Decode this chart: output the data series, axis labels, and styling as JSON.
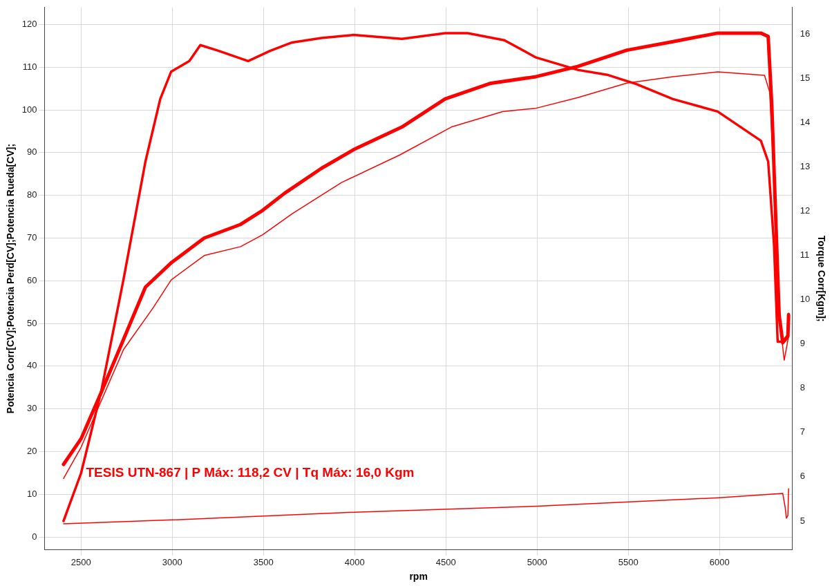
{
  "chart_data": {
    "type": "line",
    "title": "TESIS UTN-867 | P Máx: 118,2 CV | Tq Máx: 16,0 Kgm",
    "xlabel": "rpm",
    "ylabel": "Potencia Corr[CV];Potencia Perd[CV];Potencia Rueda[CV];",
    "y2label": "Torque Corr[Kgm];",
    "xlim": [
      2300,
      6400
    ],
    "xticks": [
      2500,
      3000,
      3500,
      4000,
      4500,
      5000,
      5500,
      6000
    ],
    "ylim": [
      -3,
      124
    ],
    "yticks": [
      0,
      10,
      20,
      30,
      40,
      50,
      60,
      70,
      80,
      90,
      100,
      110,
      120
    ],
    "y2lim": [
      4.35,
      16.6
    ],
    "y2ticks": [
      5,
      6,
      7,
      8,
      9,
      10,
      11,
      12,
      13,
      14,
      15,
      16
    ],
    "grid": true,
    "legend": false,
    "marker": "none",
    "line_style": "solid",
    "series": [
      {
        "color": "#ff0000",
        "x": [
          2404,
          2500,
          2612,
          2733,
          2853,
          2994,
          3175,
          3375,
          3496,
          3616,
          3817,
          3994,
          4259,
          4496,
          4741,
          4994,
          5223,
          5492,
          5745,
          5990,
          6227,
          6267,
          6287,
          6307,
          6327,
          6347,
          6375,
          6379
        ],
        "values": [
          17,
          23,
          34,
          46.3,
          58.5,
          64.2,
          70,
          73.2,
          76.5,
          80.5,
          86.3,
          90.7,
          96,
          102.6,
          106.2,
          107.8,
          110.2,
          114,
          116,
          118,
          118,
          117.2,
          101,
          76.5,
          52,
          45.5,
          47,
          52
        ]
      },
      {
        "color": "#ff0000",
        "x": [
          2404,
          2500,
          2733,
          2894,
          2994,
          3175,
          3375,
          3496,
          3657,
          3928,
          4249,
          4530,
          4811,
          4994,
          5223,
          5492,
          5745,
          5990,
          6247,
          6275,
          6307,
          6335,
          6355,
          6379
        ],
        "values": [
          13.7,
          21,
          43.9,
          53.6,
          60.2,
          65.9,
          68,
          70.8,
          75.7,
          83,
          89.5,
          96,
          99.6,
          100.4,
          102.9,
          106.3,
          107.8,
          108.9,
          108.1,
          104.2,
          76.5,
          48.8,
          41.4,
          47
        ]
      },
      {
        "color": "#ff0000",
        "x": [
          2404,
          3000,
          4000,
          5000,
          6000,
          6347,
          6360,
          6367,
          6375,
          6379
        ],
        "values": [
          3.1,
          4,
          5.8,
          7.2,
          9.2,
          10.2,
          7,
          4.4,
          5,
          11.3
        ]
      },
      {
        "color": "#ff0000",
        "axis": "y2",
        "x": [
          2404,
          2500,
          2612,
          2733,
          2853,
          2934,
          2994,
          3094,
          3154,
          3255,
          3416,
          3536,
          3657,
          3817,
          3994,
          4259,
          4496,
          4620,
          4821,
          4994,
          5223,
          5384,
          5544,
          5745,
          5990,
          6227,
          6267,
          6299,
          6319,
          6347,
          6375,
          6379
        ],
        "values": [
          5,
          6.08,
          7.96,
          10.46,
          13.12,
          14.53,
          15.15,
          15.39,
          15.75,
          15.62,
          15.39,
          15.62,
          15.81,
          15.91,
          15.98,
          15.89,
          16.02,
          16.02,
          15.86,
          15.47,
          15.19,
          15.08,
          14.87,
          14.53,
          14.25,
          13.59,
          13.12,
          11.24,
          9.05,
          9.05,
          9.2,
          9.68
        ]
      }
    ]
  }
}
